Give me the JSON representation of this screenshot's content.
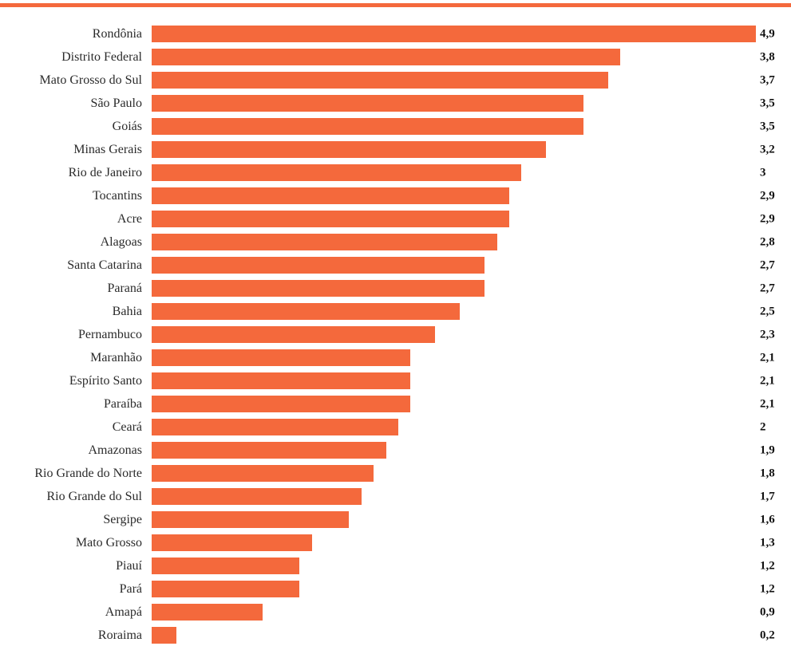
{
  "accent_color": "#f4693c",
  "chart_data": {
    "type": "bar",
    "orientation": "horizontal",
    "title": "",
    "xlabel": "",
    "ylabel": "",
    "grid": false,
    "legend": false,
    "bar_color": "#f4693c",
    "xlim": [
      0,
      4.9
    ],
    "categories": [
      "Rondônia",
      "Distrito Federal",
      "Mato Grosso do Sul",
      "São Paulo",
      "Goiás",
      "Minas Gerais",
      "Rio de Janeiro",
      "Tocantins",
      "Acre",
      "Alagoas",
      "Santa Catarina",
      "Paraná",
      "Bahia",
      "Pernambuco",
      "Maranhão",
      "Espírito Santo",
      "Paraíba",
      "Ceará",
      "Amazonas",
      "Rio Grande do Norte",
      "Rio Grande do Sul",
      "Sergipe",
      "Mato Grosso",
      "Piauí",
      "Pará",
      "Amapá",
      "Roraima"
    ],
    "values": [
      4.9,
      3.8,
      3.7,
      3.5,
      3.5,
      3.2,
      3.0,
      2.9,
      2.9,
      2.8,
      2.7,
      2.7,
      2.5,
      2.3,
      2.1,
      2.1,
      2.1,
      2.0,
      1.9,
      1.8,
      1.7,
      1.6,
      1.3,
      1.2,
      1.2,
      0.9,
      0.2
    ],
    "value_labels": [
      "4,9",
      "3,8",
      "3,7",
      "3,5",
      "3,5",
      "3,2",
      "3",
      "2,9",
      "2,9",
      "2,8",
      "2,7",
      "2,7",
      "2,5",
      "2,3",
      "2,1",
      "2,1",
      "2,1",
      "2",
      "1,9",
      "1,8",
      "1,7",
      "1,6",
      "1,3",
      "1,2",
      "1,2",
      "0,9",
      "0,2"
    ]
  }
}
